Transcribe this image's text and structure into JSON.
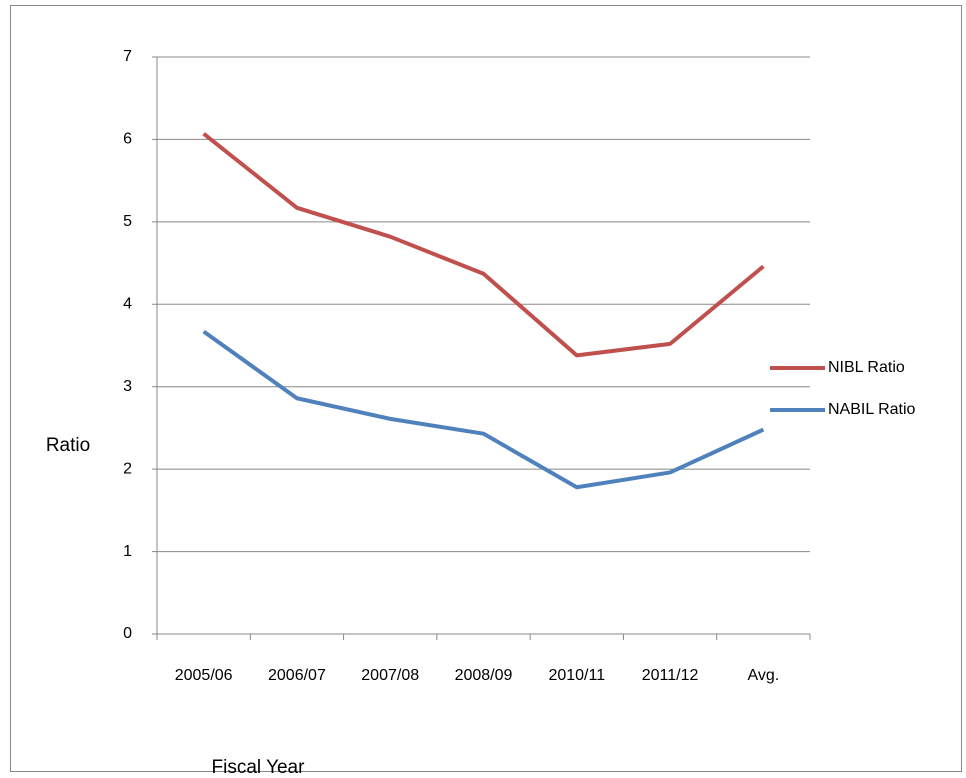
{
  "chart_data": {
    "type": "line",
    "x_label": "Fiscal Year",
    "y_label": "Ratio",
    "categories": [
      "2005/06",
      "2006/07",
      "2007/08",
      "2008/09",
      "2010/11",
      "2011/12",
      "Avg."
    ],
    "series": [
      {
        "name": "NIBL Ratio",
        "color": "#c0504d",
        "values": [
          6.07,
          5.17,
          4.82,
          4.37,
          3.38,
          3.52,
          4.46
        ]
      },
      {
        "name": "NABIL Ratio",
        "color": "#4f81bd",
        "values": [
          3.67,
          2.86,
          2.61,
          2.43,
          1.78,
          1.96,
          2.48
        ]
      }
    ],
    "ylim": [
      0,
      7
    ],
    "yticks": [
      0,
      1,
      2,
      3,
      4,
      5,
      6,
      7
    ],
    "grid": true,
    "legend": "right"
  }
}
